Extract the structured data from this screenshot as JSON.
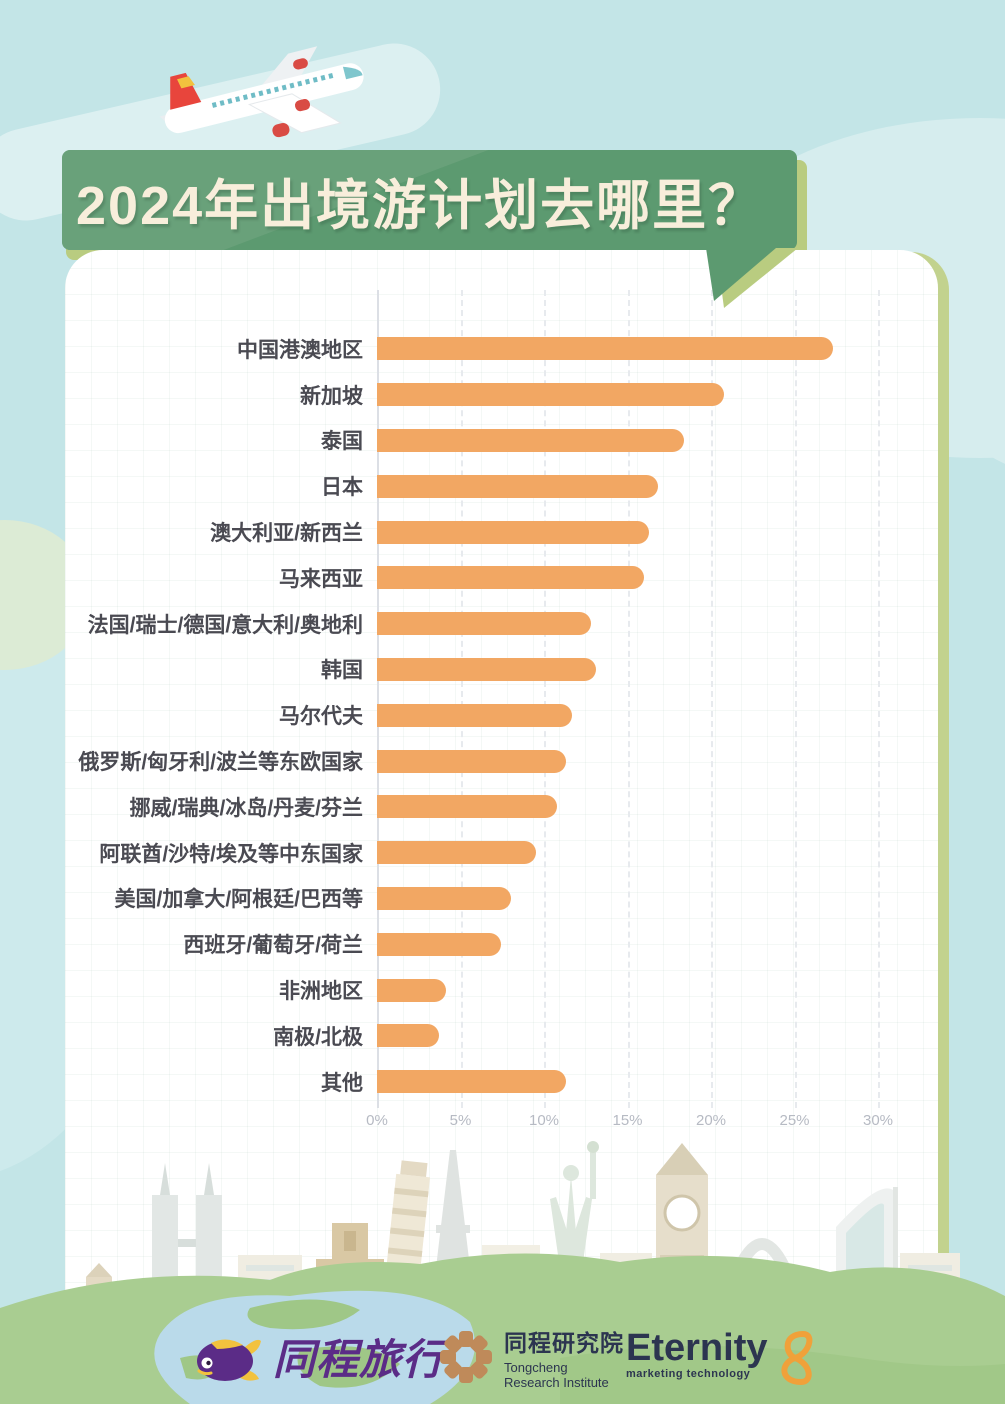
{
  "page": {
    "title": "2024年出境游计划去哪里？"
  },
  "chart_data": {
    "type": "bar",
    "orientation": "horizontal",
    "title": "2024年出境游计划去哪里？",
    "categories": [
      "中国港澳地区",
      "新加坡",
      "泰国",
      "日本",
      "澳大利亚/新西兰",
      "马来西亚",
      "法国/瑞士/德国/意大利/奥地利",
      "韩国",
      "马尔代夫",
      "俄罗斯/匈牙利/波兰等东欧国家",
      "挪威/瑞典/冰岛/丹麦/芬兰",
      "阿联酋/沙特/埃及等中东国家",
      "美国/加拿大/阿根廷/巴西等",
      "西班牙/葡萄牙/荷兰",
      "非洲地区",
      "南极/北极",
      "其他"
    ],
    "values": [
      27.3,
      20.8,
      18.4,
      16.8,
      16.3,
      16.0,
      12.8,
      13.1,
      11.7,
      11.3,
      10.8,
      9.5,
      8.0,
      7.4,
      4.1,
      3.7,
      11.3
    ],
    "unit": "%",
    "x_ticks": [
      "0%",
      "5%",
      "10%",
      "15%",
      "20%",
      "25%",
      "30%"
    ],
    "xlim": [
      0,
      30
    ],
    "grid": "vertical-dashed",
    "legend": "none",
    "bar_color": "#f2a763"
  },
  "footer": {
    "logos": {
      "travel": {
        "label": "同程旅行"
      },
      "research": {
        "name_cn": "同程研究院",
        "name_en_line1": "Tongcheng",
        "name_en_line2": "Research Institute"
      },
      "eternity": {
        "label": "Eternity",
        "sublabel": "marketing technology"
      }
    }
  },
  "colors": {
    "sky": "#c3e5e7",
    "banner_green": "#5c9a70",
    "banner_trim": "#b9cc80",
    "title_text": "#f8eedb",
    "bar": "#f2a763",
    "label_text": "#4a4a52",
    "tick_text": "#b6bac3",
    "hill_green": "#a9cd91",
    "water_blue": "#badaea",
    "travel_purple": "#5b2c87",
    "logo_navy": "#2c3550",
    "research_brown": "#bf8a5a",
    "eternity_orange": "#f0a13a"
  }
}
